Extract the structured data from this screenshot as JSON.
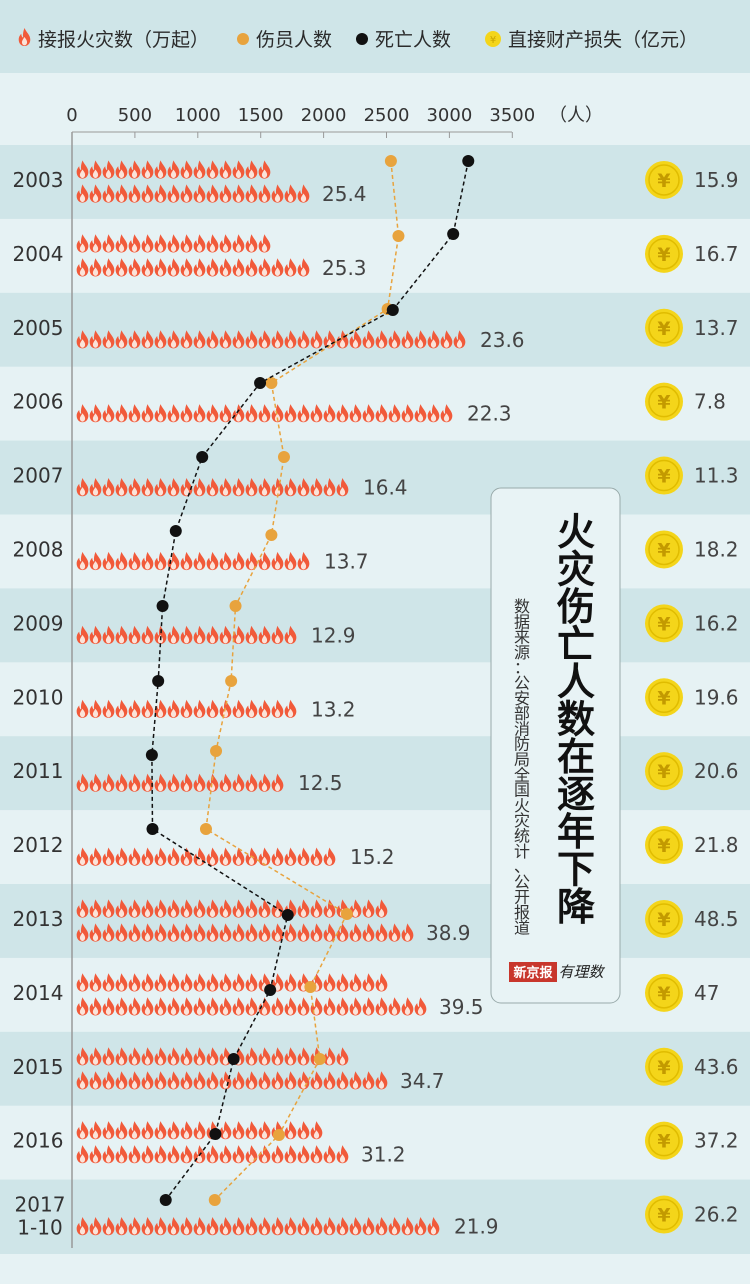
{
  "legend": {
    "fires": "接报火灾数（万起）",
    "injuries": "伤员人数",
    "deaths": "死亡人数",
    "loss": "直接财产损失（亿元）"
  },
  "axis_unit": "（人）",
  "title_chars": [
    "火",
    "灾",
    "伤",
    "亡",
    "人",
    "数",
    "在",
    "逐",
    "年",
    "下",
    "降"
  ],
  "source_chars": [
    "数",
    "据",
    "来",
    "源",
    "：",
    "公",
    "安",
    "部",
    "消",
    "防",
    "局",
    "全",
    "国",
    "火",
    "灾",
    "统",
    "计",
    "、",
    "公",
    "开",
    "报",
    "道"
  ],
  "logo_text": "新京报",
  "logo_script": "有理数",
  "colors": {
    "fire": "#f15a3a",
    "injury": "#e8a33d",
    "death": "#111111",
    "coin": "#f4d51a",
    "band_dark": "#cfe5e8",
    "band_light": "#e6f2f4"
  },
  "chart_data": {
    "type": "line",
    "x_ticks": [
      0,
      500,
      1000,
      1500,
      2000,
      2500,
      3000,
      3500
    ],
    "xlim": [
      0,
      3500
    ],
    "categories": [
      "2003",
      "2004",
      "2005",
      "2006",
      "2007",
      "2008",
      "2009",
      "2010",
      "2011",
      "2012",
      "2013",
      "2014",
      "2015",
      "2016",
      "2017\n1-10"
    ],
    "series": [
      {
        "name": "接报火灾数（万起）",
        "values": [
          25.4,
          25.3,
          23.6,
          22.3,
          16.4,
          13.7,
          12.9,
          13.2,
          12.5,
          15.2,
          38.9,
          39.5,
          34.7,
          31.2,
          21.9
        ]
      },
      {
        "name": "伤员人数",
        "values": [
          2535,
          2595,
          2509,
          1585,
          1685,
          1585,
          1300,
          1265,
          1145,
          1065,
          2185,
          1895,
          1970,
          1645,
          1135
        ]
      },
      {
        "name": "死亡人数",
        "values": [
          3150,
          3030,
          2550,
          1495,
          1035,
          825,
          720,
          685,
          635,
          640,
          1715,
          1575,
          1285,
          1140,
          745
        ]
      },
      {
        "name": "直接财产损失（亿元）",
        "values": [
          15.9,
          16.7,
          13.7,
          7.8,
          11.3,
          18.2,
          16.2,
          19.6,
          20.6,
          21.8,
          48.5,
          47,
          43.6,
          37.2,
          26.2
        ]
      }
    ]
  }
}
